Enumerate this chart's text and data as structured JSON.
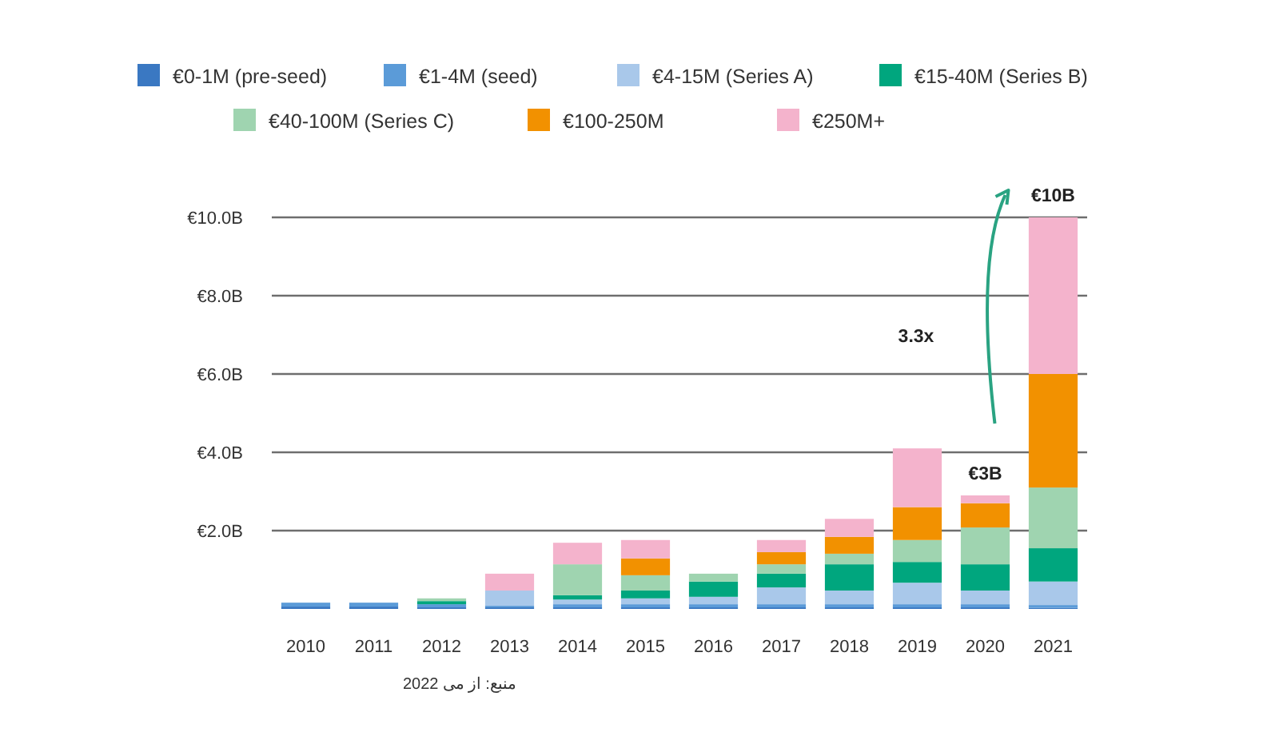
{
  "chart_data": {
    "type": "bar",
    "stacked": true,
    "categories": [
      "2010",
      "2011",
      "2012",
      "2013",
      "2014",
      "2015",
      "2016",
      "2017",
      "2018",
      "2019",
      "2020",
      "2021"
    ],
    "series": [
      {
        "name": "€0-1M (pre-seed)",
        "color": "#3a78c2",
        "values": [
          0.06,
          0.06,
          0.04,
          0.04,
          0.04,
          0.04,
          0.04,
          0.04,
          0.04,
          0.04,
          0.04,
          0.03
        ]
      },
      {
        "name": "€1-4M (seed)",
        "color": "#5b9bd8",
        "values": [
          0.1,
          0.1,
          0.08,
          0.04,
          0.08,
          0.08,
          0.08,
          0.08,
          0.08,
          0.08,
          0.08,
          0.07
        ]
      },
      {
        "name": "€4-15M (Series A)",
        "color": "#a9c8ea",
        "values": [
          0,
          0,
          0,
          0.39,
          0.12,
          0.15,
          0.19,
          0.43,
          0.35,
          0.55,
          0.35,
          0.6
        ]
      },
      {
        "name": "€15-40M (Series B)",
        "color": "#00a67e",
        "values": [
          0,
          0,
          0.08,
          0,
          0.11,
          0.2,
          0.39,
          0.35,
          0.67,
          0.53,
          0.67,
          0.85
        ]
      },
      {
        "name": "€40-100M (Series C)",
        "color": "#9fd4b0",
        "values": [
          0,
          0,
          0.07,
          0,
          0.79,
          0.39,
          0.2,
          0.24,
          0.27,
          0.56,
          0.94,
          1.55
        ]
      },
      {
        "name": "€100-250M",
        "color": "#f29100",
        "values": [
          0,
          0,
          0,
          0,
          0,
          0.43,
          0,
          0.31,
          0.43,
          0.84,
          0.62,
          2.9
        ]
      },
      {
        "name": "€250M+",
        "color": "#f4b3cc",
        "values": [
          0,
          0,
          0,
          0.43,
          0.55,
          0.47,
          0,
          0.31,
          0.46,
          1.5,
          0.2,
          4.0
        ]
      }
    ],
    "ylim": [
      0,
      10
    ],
    "yticks": [
      {
        "value": 2,
        "label": "€2.0B"
      },
      {
        "value": 4,
        "label": "€4.0B"
      },
      {
        "value": 6,
        "label": "€6.0B"
      },
      {
        "value": 8,
        "label": "€8.0B"
      },
      {
        "value": 10,
        "label": "€10.0B"
      }
    ],
    "grid": "y",
    "legend": "top",
    "annotations": [
      {
        "text": "€10B",
        "x": "2021",
        "y": 10
      },
      {
        "text": "€3B",
        "x": "2020",
        "y": 2.9
      },
      "3.3x",
      "منبع: از می 2022"
    ]
  }
}
